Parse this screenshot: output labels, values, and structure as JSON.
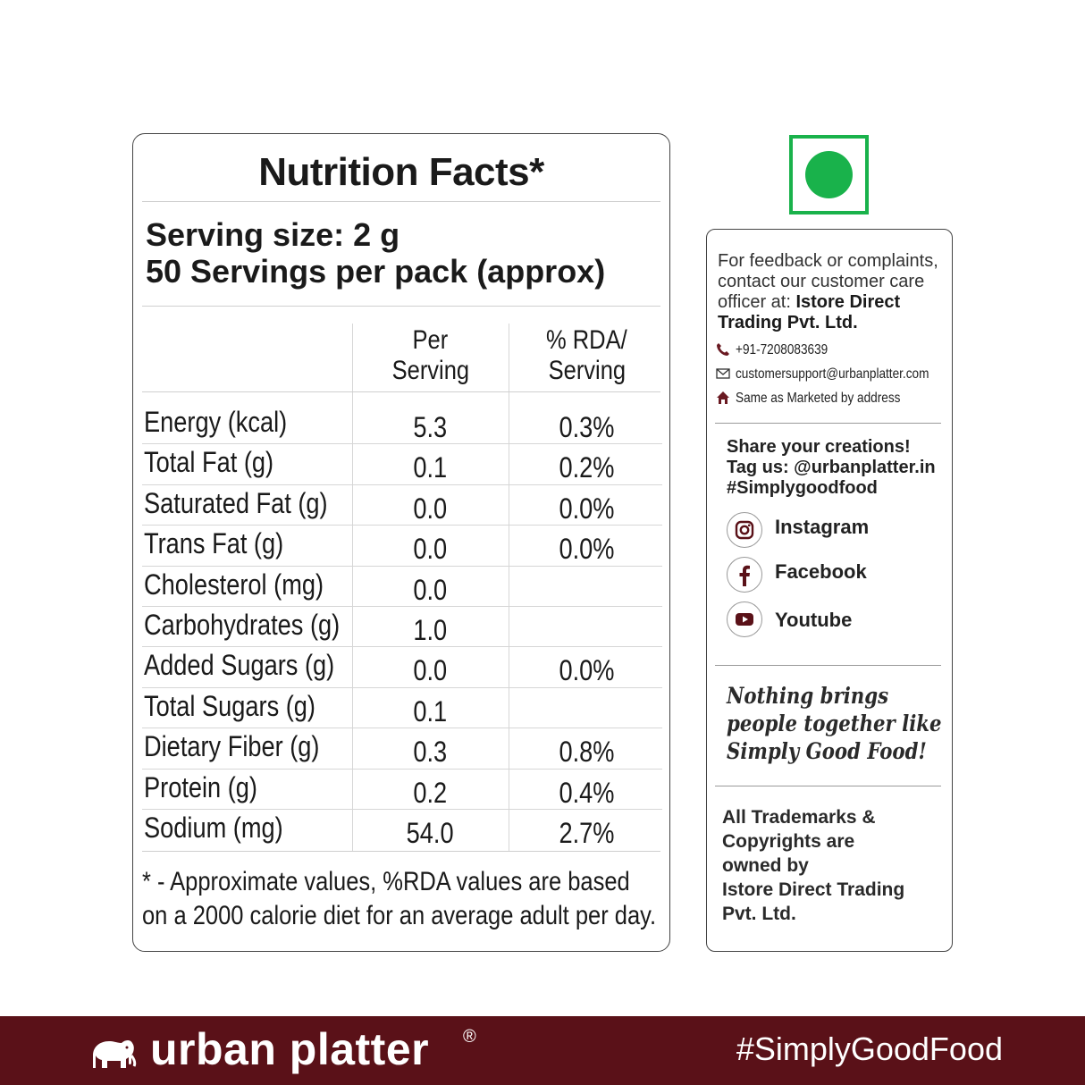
{
  "nutrition": {
    "title": "Nutrition Facts*",
    "serving_size": "Serving size: 2 g",
    "servings_per_pack": "50 Servings per pack (approx)",
    "col_per_serving": [
      "Per",
      "Serving"
    ],
    "col_rda": [
      "% RDA/",
      "Serving"
    ],
    "rows": [
      {
        "label": "Energy (kcal)",
        "per_serving": "5.3",
        "rda": "0.3%"
      },
      {
        "label": "Total Fat (g)",
        "per_serving": "0.1",
        "rda": "0.2%"
      },
      {
        "label": "Saturated Fat (g)",
        "per_serving": "0.0",
        "rda": "0.0%"
      },
      {
        "label": "Trans Fat (g)",
        "per_serving": "0.0",
        "rda": "0.0%"
      },
      {
        "label": "Cholesterol (mg)",
        "per_serving": "0.0",
        "rda": ""
      },
      {
        "label": "Carbohydrates (g)",
        "per_serving": "1.0",
        "rda": ""
      },
      {
        "label": "Added Sugars (g)",
        "per_serving": "0.0",
        "rda": "0.0%"
      },
      {
        "label": "Total Sugars (g)",
        "per_serving": "0.1",
        "rda": ""
      },
      {
        "label": "Dietary Fiber (g)",
        "per_serving": "0.3",
        "rda": "0.8%"
      },
      {
        "label": "Protein (g)",
        "per_serving": "0.2",
        "rda": "0.4%"
      },
      {
        "label": "Sodium (mg)",
        "per_serving": "54.0",
        "rda": "2.7%"
      }
    ],
    "footnote": [
      "* - Approximate values, %RDA values are based",
      "on a 2000 calorie diet for an average adult per day."
    ]
  },
  "veg_mark": {
    "color": "#19b24b",
    "icon": "veg-symbol-icon"
  },
  "sidebar": {
    "feedback_lines": [
      "For feedback or complaints,",
      "contact our customer care"
    ],
    "feedback_line3_prefix": "officer at: ",
    "feedback_company_a": "Istore Direct",
    "feedback_company_b": "Trading Pvt. Ltd.",
    "phone": "+91-7208083639",
    "email": "customersupport@urbanplatter.com",
    "address": "Same as Marketed by address",
    "share_lines": [
      "Share your creations!",
      "Tag us: @urbanplatter.in",
      "#Simplygoodfood"
    ],
    "social": [
      {
        "name": "Instagram",
        "icon": "instagram-icon"
      },
      {
        "name": "Facebook",
        "icon": "facebook-icon"
      },
      {
        "name": "Youtube",
        "icon": "youtube-icon"
      }
    ],
    "slogan_lines": [
      "Nothing brings",
      "people together like",
      "Simply Good Food!"
    ],
    "trademark_lines": [
      "All Trademarks &",
      "Copyrights are",
      "owned by",
      "Istore Direct Trading",
      "Pvt. Ltd."
    ]
  },
  "footer": {
    "brand": "urban platter",
    "registered": "®",
    "hashtag": "#SimplyGoodFood",
    "bar_color": "#5a1118",
    "logo_icon": "elephant-icon"
  }
}
